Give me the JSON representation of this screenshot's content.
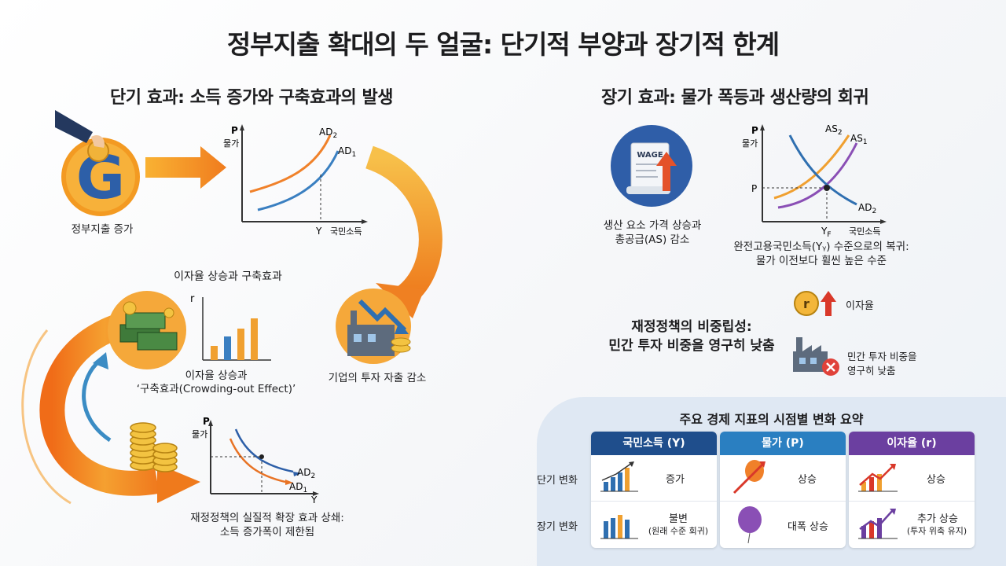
{
  "title": "정부지출 확대의 두 얼굴: 단기적 부양과 장기적 한계",
  "short_term": {
    "heading": "단기 효과: 소득 증가와 구축효과의 발생",
    "gov_icon": "government-spending-icon",
    "gov_caption": "정부지출 증가",
    "graph1": {
      "p_label": "P",
      "p_sub": "물가",
      "ad2": "AD",
      "ad2_sub": "2",
      "ad1": "AD",
      "ad1_sub": "1",
      "y_label": "Y",
      "x_label": "국민소득"
    },
    "interest_heading": "이자율 상승과 구축효과",
    "money_icon": "money-stack-icon",
    "bar_axis": "r",
    "interest_caption_1": "이자율 상승과",
    "interest_caption_2": "‘구축효과(Crowding-out Effect)’",
    "factory_icon": "factory-decline-icon",
    "factory_caption": "기업의 투자 자출 감소",
    "coins_icon": "coin-stack-icon",
    "graph2": {
      "p_label": "P",
      "p_sub": "물가",
      "ad2": "AD",
      "ad2_sub": "2",
      "ad1": "AD",
      "ad1_sub": "1",
      "y_label": "Y"
    },
    "bottom_caption_1": "재정정책의 실질적 확장 효과 상쇄:",
    "bottom_caption_2": "소득 증가폭이 제한됨"
  },
  "long_term": {
    "heading": "장기 효과: 물가 폭등과 생산량의 회귀",
    "wage_icon": "wage-document-icon",
    "wage_label": "WAGE",
    "wage_caption_1": "생산 요소 가격 상승과",
    "wage_caption_2": "총공급(AS) 감소",
    "graph": {
      "p_label": "P",
      "p_sub": "물가",
      "as2": "AS",
      "as2_sub": "2",
      "as1": "AS",
      "as1_sub": "1",
      "p_mark": "P",
      "ad2": "AD",
      "ad2_sub": "2",
      "yf": "Y",
      "yf_sub": "F",
      "x_label": "국민소득"
    },
    "graph_caption_1": "완전고용국민소득(Yᵧ) 수준으로의 복귀:",
    "graph_caption_2": "물가 이전보다 휠씬 높은 수준",
    "interest_icon": "interest-rate-up-icon",
    "interest_r": "r",
    "interest_label": "이자율",
    "nonneutral_1": "재정정책의 비중립성:",
    "nonneutral_2": "민간 투자 비중을 영구히 낮춤",
    "factory_icon": "factory-x-icon",
    "invest_label_1": "민간 투자 비중을",
    "invest_label_2": "영구히 낮춤"
  },
  "summary": {
    "title": "주요 경제 지표의 시점별 변화 요약",
    "row_short": "단기 변화",
    "row_long": "장기 변화",
    "columns": [
      {
        "header": "국민소득 (Y)",
        "color": "#1f4e8c",
        "short": "증가",
        "long": "불변",
        "long_sub": "(원래 수준 회귀)",
        "short_icon": "bar-chart-up-icon",
        "long_icon": "bar-chart-flat-icon"
      },
      {
        "header": "물가 (P)",
        "color": "#2a7fc1",
        "short": "상승",
        "long": "대폭 상승",
        "long_sub": "",
        "short_icon": "balloon-arrow-icon",
        "long_icon": "balloon-icon"
      },
      {
        "header": "이자율 (r)",
        "color": "#6b3fa0",
        "short": "상승",
        "long": "추가 상승",
        "long_sub": "(투자 위축 유지)",
        "short_icon": "trend-up-icon",
        "long_icon": "trend-up-strong-icon"
      }
    ]
  }
}
